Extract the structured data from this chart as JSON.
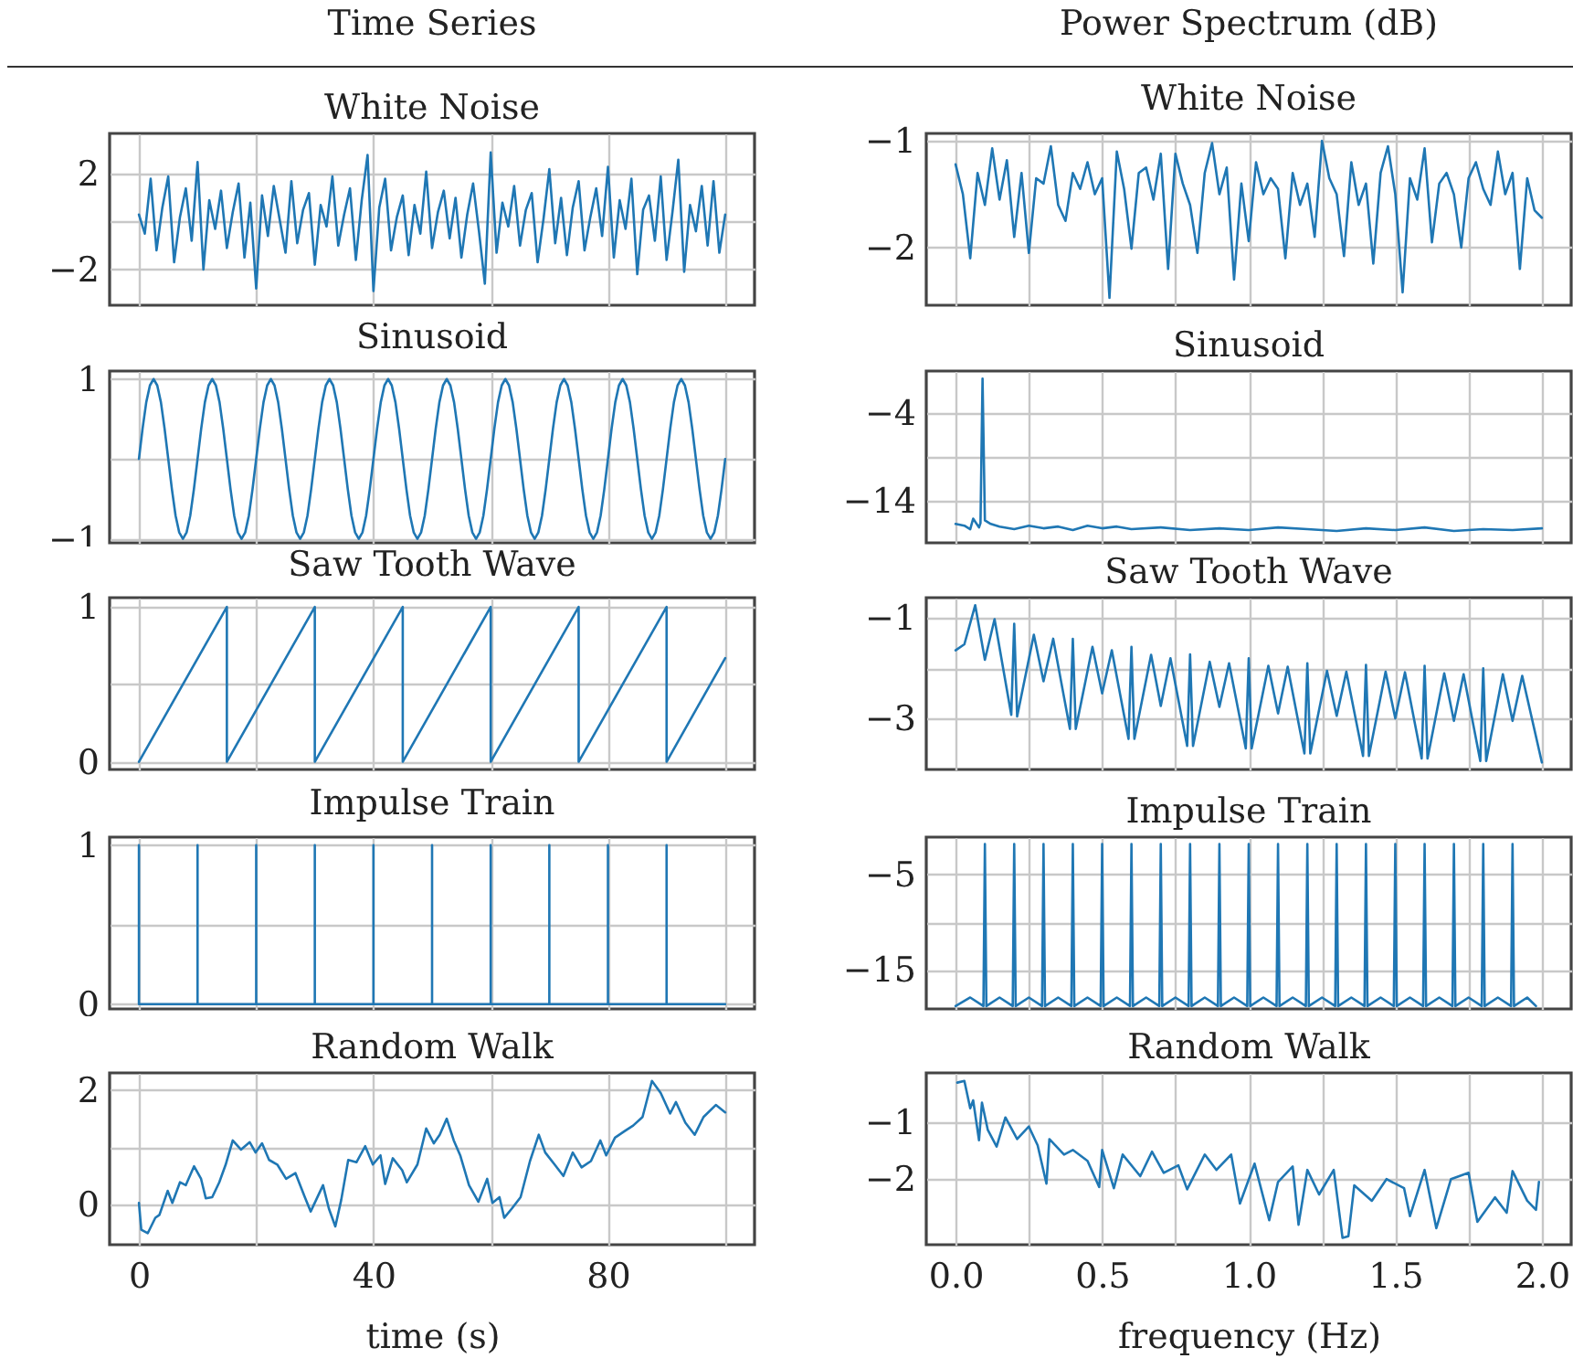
{
  "chart_data": [
    {
      "type": "line",
      "title": "White Noise",
      "annotations": [
        "Time Series"
      ],
      "color": "#1f77b4",
      "grid": true,
      "tick_labels": "y",
      "xlim": [
        -5,
        105
      ],
      "xticks": [
        0,
        20,
        40,
        60,
        80,
        100
      ],
      "ylim": [
        -3.5,
        3.7
      ],
      "yticks": [
        -2,
        {
          "value": 0,
          "label": null
        },
        2
      ],
      "x": [
        0,
        1,
        2,
        3,
        4,
        5,
        6,
        7,
        8,
        9,
        10,
        11,
        12,
        13,
        14,
        15,
        16,
        17,
        18,
        19,
        20,
        21,
        22,
        23,
        24,
        25,
        26,
        27,
        28,
        29,
        30,
        31,
        32,
        33,
        34,
        35,
        36,
        37,
        38,
        39,
        40,
        41,
        42,
        43,
        44,
        45,
        46,
        47,
        48,
        49,
        50,
        51,
        52,
        53,
        54,
        55,
        56,
        57,
        58,
        59,
        60,
        61,
        62,
        63,
        64,
        65,
        66,
        67,
        68,
        69,
        70,
        71,
        72,
        73,
        74,
        75,
        76,
        77,
        78,
        79,
        80,
        81,
        82,
        83,
        84,
        85,
        86,
        87,
        88,
        89,
        90,
        91,
        92,
        93,
        94,
        95,
        96,
        97,
        98,
        99,
        100
      ],
      "values": [
        0.3,
        -0.5,
        1.8,
        -1.2,
        0.6,
        1.9,
        -1.7,
        0.2,
        1.4,
        -0.8,
        2.5,
        -2.0,
        0.9,
        -0.3,
        1.3,
        -1.1,
        0.4,
        1.6,
        -1.5,
        0.8,
        -2.8,
        1.1,
        -0.6,
        1.5,
        0.1,
        -1.3,
        1.7,
        -0.9,
        0.5,
        1.2,
        -1.8,
        0.7,
        -0.2,
        1.9,
        -1.0,
        0.3,
        1.4,
        -1.6,
        0.9,
        2.8,
        -2.9,
        0.6,
        1.8,
        -1.2,
        0.2,
        1.1,
        -1.4,
        0.7,
        -0.5,
        2.1,
        -1.1,
        0.4,
        1.3,
        -0.7,
        1.0,
        -1.5,
        0.3,
        1.6,
        -0.4,
        -2.6,
        2.9,
        -1.3,
        0.8,
        -0.2,
        1.5,
        -1.0,
        0.5,
        1.2,
        -1.7,
        0.1,
        2.2,
        -0.9,
        1.0,
        -1.4,
        0.6,
        1.7,
        -1.2,
        0.2,
        1.4,
        -0.6,
        2.3,
        -1.5,
        0.9,
        -0.3,
        1.8,
        -2.2,
        0.5,
        1.1,
        -0.8,
        1.9,
        -1.6,
        0.4,
        2.6,
        -2.1,
        0.7,
        -0.4,
        1.5,
        -1.0,
        1.7,
        -1.3,
        0.3
      ]
    },
    {
      "type": "line",
      "title": "White Noise",
      "annotations": [
        "Power Spectrum (dB)"
      ],
      "color": "#1f77b4",
      "grid": true,
      "tick_labels": "y",
      "xlim": [
        -0.1,
        2.1
      ],
      "xticks": [
        0,
        0.25,
        0.5,
        0.75,
        1,
        1.25,
        1.5,
        1.75,
        2
      ],
      "ylim": [
        -2.54,
        -0.93
      ],
      "yticks": [
        -2,
        -1
      ],
      "x": [
        0,
        0.025,
        0.05,
        0.075,
        0.1,
        0.125,
        0.15,
        0.175,
        0.2,
        0.225,
        0.25,
        0.275,
        0.3,
        0.325,
        0.35,
        0.375,
        0.4,
        0.425,
        0.45,
        0.475,
        0.5,
        0.525,
        0.55,
        0.575,
        0.6,
        0.625,
        0.65,
        0.675,
        0.7,
        0.725,
        0.75,
        0.775,
        0.8,
        0.825,
        0.85,
        0.875,
        0.9,
        0.925,
        0.95,
        0.975,
        1,
        1.025,
        1.05,
        1.075,
        1.1,
        1.125,
        1.15,
        1.175,
        1.2,
        1.225,
        1.25,
        1.275,
        1.3,
        1.325,
        1.35,
        1.375,
        1.4,
        1.425,
        1.45,
        1.475,
        1.5,
        1.525,
        1.55,
        1.575,
        1.6,
        1.625,
        1.65,
        1.675,
        1.7,
        1.725,
        1.75,
        1.775,
        1.8,
        1.825,
        1.85,
        1.875,
        1.9,
        1.925,
        1.95,
        1.975,
        2
      ],
      "values": [
        -1.22,
        -1.5,
        -2.1,
        -1.3,
        -1.6,
        -1.07,
        -1.55,
        -1.18,
        -1.9,
        -1.3,
        -2.05,
        -1.35,
        -1.4,
        -1.05,
        -1.6,
        -1.75,
        -1.3,
        -1.45,
        -1.2,
        -1.5,
        -1.35,
        -2.47,
        -1.1,
        -1.45,
        -2.01,
        -1.3,
        -1.25,
        -1.55,
        -1.12,
        -2.2,
        -1.12,
        -1.4,
        -1.6,
        -2.05,
        -1.3,
        -1.02,
        -1.5,
        -1.25,
        -2.3,
        -1.4,
        -1.94,
        -1.2,
        -1.5,
        -1.35,
        -1.45,
        -2.1,
        -1.3,
        -1.6,
        -1.4,
        -1.9,
        -1.0,
        -1.35,
        -1.5,
        -2.08,
        -1.2,
        -1.6,
        -1.4,
        -2.15,
        -1.3,
        -1.05,
        -1.5,
        -2.42,
        -1.35,
        -1.55,
        -1.07,
        -1.95,
        -1.4,
        -1.3,
        -1.5,
        -2.0,
        -1.35,
        -1.2,
        -1.45,
        -1.6,
        -1.1,
        -1.5,
        -1.3,
        -2.2,
        -1.35,
        -1.65,
        -1.72
      ]
    },
    {
      "type": "line",
      "title": "Sinusoid",
      "color": "#1f77b4",
      "grid": true,
      "tick_labels": "y",
      "xlim": [
        -5,
        105
      ],
      "xticks": [
        0,
        20,
        40,
        60,
        80,
        100
      ],
      "ylim": [
        -1.05,
        1.1
      ],
      "yticks": [
        -1,
        {
          "value": 0,
          "label": null
        },
        1
      ],
      "x": [
        0,
        0.625,
        1.25,
        1.875,
        2.5,
        3.125,
        3.75,
        4.375,
        5,
        5.625,
        6.25,
        6.875,
        7.5,
        8.125,
        8.75,
        9.375,
        10,
        10.625,
        11.25,
        11.875,
        12.5,
        13.125,
        13.75,
        14.375,
        15,
        15.625,
        16.25,
        16.875,
        17.5,
        18.125,
        18.75,
        19.375,
        20,
        20.625,
        21.25,
        21.875,
        22.5,
        23.125,
        23.75,
        24.375,
        25,
        25.625,
        26.25,
        26.875,
        27.5,
        28.125,
        28.75,
        29.375,
        30,
        30.625,
        31.25,
        31.875,
        32.5,
        33.125,
        33.75,
        34.375,
        35,
        35.625,
        36.25,
        36.875,
        37.5,
        38.125,
        38.75,
        39.375,
        40,
        40.625,
        41.25,
        41.875,
        42.5,
        43.125,
        43.75,
        44.375,
        45,
        45.625,
        46.25,
        46.875,
        47.5,
        48.125,
        48.75,
        49.375,
        50,
        50.625,
        51.25,
        51.875,
        52.5,
        53.125,
        53.75,
        54.375,
        55,
        55.625,
        56.25,
        56.875,
        57.5,
        58.125,
        58.75,
        59.375,
        60,
        60.625,
        61.25,
        61.875,
        62.5,
        63.125,
        63.75,
        64.375,
        65,
        65.625,
        66.25,
        66.875,
        67.5,
        68.125,
        68.75,
        69.375,
        70,
        70.625,
        71.25,
        71.875,
        72.5,
        73.125,
        73.75,
        74.375,
        75,
        75.625,
        76.25,
        76.875,
        77.5,
        78.125,
        78.75,
        79.375,
        80,
        80.625,
        81.25,
        81.875,
        82.5,
        83.125,
        83.75,
        84.375,
        85,
        85.625,
        86.25,
        86.875,
        87.5,
        88.125,
        88.75,
        89.375,
        90,
        90.625,
        91.25,
        91.875,
        92.5,
        93.125,
        93.75,
        94.375,
        95,
        95.625,
        96.25,
        96.875,
        97.5,
        98.125,
        98.75,
        99.375,
        100
      ],
      "values": [
        0,
        0.38,
        0.71,
        0.92,
        1,
        0.92,
        0.71,
        0.38,
        0,
        -0.38,
        -0.71,
        -0.92,
        -1,
        -0.92,
        -0.71,
        -0.38,
        0,
        0.38,
        0.71,
        0.92,
        1,
        0.92,
        0.71,
        0.38,
        0,
        -0.38,
        -0.71,
        -0.92,
        -1,
        -0.92,
        -0.71,
        -0.38,
        0,
        0.38,
        0.71,
        0.92,
        1,
        0.92,
        0.71,
        0.38,
        0,
        -0.38,
        -0.71,
        -0.92,
        -1,
        -0.92,
        -0.71,
        -0.38,
        0,
        0.38,
        0.71,
        0.92,
        1,
        0.92,
        0.71,
        0.38,
        0,
        -0.38,
        -0.71,
        -0.92,
        -1,
        -0.92,
        -0.71,
        -0.38,
        0,
        0.38,
        0.71,
        0.92,
        1,
        0.92,
        0.71,
        0.38,
        0,
        -0.38,
        -0.71,
        -0.92,
        -1,
        -0.92,
        -0.71,
        -0.38,
        0,
        0.38,
        0.71,
        0.92,
        1,
        0.92,
        0.71,
        0.38,
        0,
        -0.38,
        -0.71,
        -0.92,
        -1,
        -0.92,
        -0.71,
        -0.38,
        0,
        0.38,
        0.71,
        0.92,
        1,
        0.92,
        0.71,
        0.38,
        0,
        -0.38,
        -0.71,
        -0.92,
        -1,
        -0.92,
        -0.71,
        -0.38,
        0,
        0.38,
        0.71,
        0.92,
        1,
        0.92,
        0.71,
        0.38,
        0,
        -0.38,
        -0.71,
        -0.92,
        -1,
        -0.92,
        -0.71,
        -0.38,
        0,
        0.38,
        0.71,
        0.92,
        1,
        0.92,
        0.71,
        0.38,
        0,
        -0.38,
        -0.71,
        -0.92,
        -1,
        -0.92,
        -0.71,
        -0.38,
        0,
        0.38,
        0.71,
        0.92,
        1,
        0.92,
        0.71,
        0.38,
        0,
        -0.38,
        -0.71,
        -0.92,
        -1,
        -0.92,
        -0.71,
        -0.38,
        0
      ]
    },
    {
      "type": "line",
      "title": "Sinusoid",
      "color": "#1f77b4",
      "grid": true,
      "tick_labels": "y",
      "xlim": [
        -0.1,
        2.1
      ],
      "xticks": [
        0,
        0.25,
        0.5,
        0.75,
        1,
        1.25,
        1.5,
        1.75,
        2
      ],
      "ylim": [
        -18.75,
        0.75
      ],
      "yticks": [
        -14,
        {
          "value": -9,
          "label": null
        },
        -4
      ],
      "x": [
        0,
        0.03,
        0.05,
        0.06,
        0.08,
        0.085,
        0.092,
        0.1,
        0.12,
        0.15,
        0.2,
        0.25,
        0.3,
        0.35,
        0.4,
        0.45,
        0.5,
        0.55,
        0.6,
        0.7,
        0.8,
        0.9,
        1,
        1.1,
        1.2,
        1.3,
        1.4,
        1.5,
        1.6,
        1.7,
        1.8,
        1.9,
        2
      ],
      "values": [
        -16.6,
        -16.8,
        -17.2,
        -16.0,
        -17.0,
        -16.5,
        -0.1,
        -16.2,
        -16.6,
        -16.9,
        -17.2,
        -16.8,
        -17.1,
        -16.9,
        -17.3,
        -16.8,
        -17.1,
        -16.9,
        -17.2,
        -17.0,
        -17.3,
        -17.1,
        -17.3,
        -17.0,
        -17.2,
        -17.4,
        -17.1,
        -17.3,
        -17.0,
        -17.4,
        -17.2,
        -17.3,
        -17.1
      ]
    },
    {
      "type": "line",
      "title": "Saw Tooth Wave",
      "color": "#1f77b4",
      "grid": true,
      "tick_labels": "y",
      "xlim": [
        -5,
        105
      ],
      "xticks": [
        0,
        20,
        40,
        60,
        80,
        100
      ],
      "ylim": [
        -0.05,
        1.06
      ],
      "yticks": [
        0,
        {
          "value": 0.5,
          "label": null
        },
        1
      ],
      "x": [
        0,
        15,
        15,
        30,
        30,
        45,
        45,
        60,
        60,
        75,
        75,
        90,
        90,
        100
      ],
      "values": [
        0,
        1,
        0,
        1,
        0,
        1,
        0,
        1,
        0,
        1,
        0,
        1,
        0,
        0.67
      ]
    },
    {
      "type": "line",
      "title": "Saw Tooth Wave",
      "color": "#1f77b4",
      "grid": true,
      "tick_labels": "y",
      "xlim": [
        -0.1,
        2.1
      ],
      "xticks": [
        0,
        0.25,
        0.5,
        0.75,
        1,
        1.25,
        1.5,
        1.75,
        2
      ],
      "ylim": [
        -4.02,
        -0.59
      ],
      "yticks": [
        -3,
        {
          "value": -2,
          "label": null
        },
        -1
      ],
      "x": [
        0,
        0.03,
        0.067,
        0.1,
        0.133,
        0.19,
        0.2,
        0.21,
        0.267,
        0.3,
        0.333,
        0.39,
        0.4,
        0.41,
        0.467,
        0.5,
        0.533,
        0.59,
        0.6,
        0.61,
        0.667,
        0.7,
        0.733,
        0.79,
        0.8,
        0.81,
        0.867,
        0.9,
        0.933,
        0.99,
        1,
        1.01,
        1.067,
        1.1,
        1.133,
        1.19,
        1.2,
        1.21,
        1.267,
        1.3,
        1.333,
        1.39,
        1.4,
        1.41,
        1.467,
        1.5,
        1.533,
        1.59,
        1.6,
        1.61,
        1.667,
        1.7,
        1.733,
        1.79,
        1.8,
        1.81,
        1.867,
        1.9,
        1.933,
        2
      ],
      "values": [
        -1.64,
        -1.52,
        -0.74,
        -1.83,
        -1.02,
        -2.93,
        -1.11,
        -2.96,
        -1.33,
        -2.26,
        -1.41,
        -3.21,
        -1.41,
        -3.21,
        -1.57,
        -2.5,
        -1.64,
        -3.41,
        -1.57,
        -3.41,
        -1.73,
        -2.75,
        -1.8,
        -3.55,
        -1.72,
        -3.55,
        -1.87,
        -2.77,
        -1.9,
        -3.6,
        -1.8,
        -3.6,
        -1.95,
        -2.9,
        -1.97,
        -3.7,
        -1.9,
        -3.7,
        -2.05,
        -2.95,
        -2.07,
        -3.75,
        -1.93,
        -3.75,
        -2.07,
        -3.0,
        -2.08,
        -3.8,
        -1.95,
        -3.8,
        -2.1,
        -3.05,
        -2.12,
        -3.85,
        -2.0,
        -3.85,
        -2.12,
        -3.05,
        -2.15,
        -3.88
      ]
    },
    {
      "type": "line",
      "title": "Impulse Train",
      "color": "#1f77b4",
      "grid": true,
      "tick_labels": "y",
      "xlim": [
        -5,
        105
      ],
      "xticks": [
        0,
        20,
        40,
        60,
        80,
        100
      ],
      "ylim": [
        -0.03,
        1.05
      ],
      "yticks": [
        0,
        {
          "value": 0.5,
          "label": null
        },
        1
      ],
      "x": [
        0,
        0,
        10,
        10,
        10,
        20,
        20,
        20,
        30,
        30,
        30,
        40,
        40,
        40,
        50,
        50,
        50,
        60,
        60,
        60,
        70,
        70,
        70,
        80,
        80,
        80,
        90,
        90,
        90,
        100
      ],
      "values": [
        1,
        0,
        0,
        1,
        0,
        0,
        1,
        0,
        0,
        1,
        0,
        0,
        1,
        0,
        0,
        1,
        0,
        0,
        1,
        0,
        0,
        1,
        0,
        0,
        1,
        0,
        0,
        1,
        0,
        0
      ]
    },
    {
      "type": "line",
      "title": "Impulse Train",
      "color": "#1f77b4",
      "grid": true,
      "tick_labels": "y",
      "xlim": [
        -0.1,
        2.1
      ],
      "xticks": [
        0,
        0.25,
        0.5,
        0.75,
        1,
        1.25,
        1.5,
        1.75,
        2
      ],
      "ylim": [
        -19.1,
        -1.07
      ],
      "yticks": [
        -15,
        {
          "value": -10,
          "label": null
        },
        -5
      ],
      "x": [
        0,
        0.05,
        0.095,
        0.1,
        0.105,
        0.15,
        0.195,
        0.2,
        0.205,
        0.25,
        0.295,
        0.3,
        0.305,
        0.35,
        0.395,
        0.4,
        0.405,
        0.45,
        0.495,
        0.5,
        0.505,
        0.55,
        0.595,
        0.6,
        0.605,
        0.65,
        0.695,
        0.7,
        0.705,
        0.75,
        0.795,
        0.8,
        0.805,
        0.85,
        0.895,
        0.9,
        0.905,
        0.95,
        0.995,
        1,
        1.005,
        1.05,
        1.095,
        1.1,
        1.105,
        1.15,
        1.195,
        1.2,
        1.205,
        1.25,
        1.295,
        1.3,
        1.305,
        1.35,
        1.395,
        1.4,
        1.405,
        1.45,
        1.495,
        1.5,
        1.505,
        1.55,
        1.595,
        1.6,
        1.605,
        1.65,
        1.695,
        1.7,
        1.705,
        1.75,
        1.795,
        1.8,
        1.805,
        1.85,
        1.895,
        1.9,
        1.905,
        1.95,
        1.98
      ],
      "values": [
        -18.8,
        -17.9,
        -18.8,
        -1.8,
        -18.8,
        -17.9,
        -18.8,
        -1.8,
        -18.8,
        -17.9,
        -18.8,
        -1.8,
        -18.8,
        -17.9,
        -18.8,
        -1.8,
        -18.8,
        -17.9,
        -18.8,
        -1.8,
        -18.8,
        -17.9,
        -18.8,
        -1.8,
        -18.8,
        -17.9,
        -18.8,
        -1.8,
        -18.8,
        -17.9,
        -18.8,
        -1.8,
        -18.8,
        -17.9,
        -18.8,
        -1.8,
        -18.8,
        -17.9,
        -18.8,
        -1.8,
        -18.8,
        -17.9,
        -18.8,
        -1.8,
        -18.8,
        -17.9,
        -18.8,
        -1.8,
        -18.8,
        -17.9,
        -18.8,
        -1.8,
        -18.8,
        -17.9,
        -18.8,
        -1.8,
        -18.8,
        -17.9,
        -18.8,
        -1.8,
        -18.8,
        -17.9,
        -18.8,
        -1.8,
        -18.8,
        -17.9,
        -18.8,
        -1.8,
        -18.8,
        -17.9,
        -18.8,
        -1.8,
        -18.8,
        -17.9,
        -18.8,
        -1.8,
        -18.8,
        -17.9,
        -18.8
      ]
    },
    {
      "type": "line",
      "title": "Random Walk",
      "xlabel": "time (s)",
      "color": "#1f77b4",
      "grid": true,
      "xlim": [
        -5,
        105
      ],
      "xticks": [
        0,
        {
          "value": 20,
          "label": null
        },
        40,
        {
          "value": 60,
          "label": null
        },
        80,
        {
          "value": 100,
          "label": null
        }
      ],
      "ylim": [
        -0.7,
        2.3
      ],
      "yticks": [
        0,
        {
          "value": 1,
          "label": null
        },
        2
      ],
      "x": [
        0,
        0.4,
        1.5,
        2.8,
        3.5,
        4.9,
        5.7,
        7,
        8,
        9.4,
        10.6,
        11.4,
        12.5,
        13.7,
        14.8,
        16,
        17.4,
        18.9,
        19.9,
        21,
        22.2,
        23.6,
        25.1,
        26.7,
        28.3,
        29.3,
        31.4,
        32.4,
        33.5,
        34.5,
        35.7,
        37.1,
        38.6,
        39.9,
        41.2,
        42,
        43.3,
        44.9,
        45.7,
        47.5,
        49,
        50.3,
        51.3,
        52.5,
        53.7,
        54.8,
        56.3,
        57.9,
        59.4,
        60.3,
        61.5,
        62.3,
        63.6,
        65.1,
        66.7,
        68.2,
        69.3,
        70.9,
        72.4,
        74,
        75.5,
        77.1,
        78.7,
        79.7,
        81.2,
        82.8,
        84.3,
        85.9,
        87.5,
        89,
        90.6,
        91.6,
        93.2,
        94.8,
        96.3,
        98.4,
        100
      ],
      "values": [
        0.03,
        -0.44,
        -0.5,
        -0.23,
        -0.18,
        0.24,
        0.03,
        0.39,
        0.34,
        0.67,
        0.45,
        0.11,
        0.13,
        0.39,
        0.7,
        1.12,
        0.96,
        1.09,
        0.91,
        1.07,
        0.78,
        0.7,
        0.45,
        0.55,
        0.13,
        -0.12,
        0.34,
        -0.07,
        -0.38,
        0.08,
        0.78,
        0.74,
        1.02,
        0.7,
        0.86,
        0.36,
        0.81,
        0.6,
        0.39,
        0.7,
        1.33,
        1.07,
        1.22,
        1.5,
        1.12,
        0.86,
        0.34,
        0.05,
        0.45,
        0.03,
        0.13,
        -0.23,
        -0.07,
        0.13,
        0.76,
        1.22,
        0.91,
        0.7,
        0.5,
        0.91,
        0.65,
        0.76,
        1.12,
        0.86,
        1.17,
        1.28,
        1.38,
        1.53,
        2.16,
        1.95,
        1.59,
        1.79,
        1.43,
        1.22,
        1.53,
        1.74,
        1.61
      ]
    },
    {
      "type": "line",
      "title": "Random Walk",
      "xlabel": "frequency (Hz)",
      "color": "#1f77b4",
      "grid": true,
      "xlim": [
        -0.1,
        2.1
      ],
      "xticks": [
        {
          "value": 0,
          "label": "0.0"
        },
        {
          "value": 0.25,
          "label": null
        },
        0.5,
        {
          "value": 0.75,
          "label": null
        },
        {
          "value": 1,
          "label": "1.0"
        },
        {
          "value": 1.25,
          "label": null
        },
        1.5,
        {
          "value": 1.75,
          "label": null
        },
        {
          "value": 2,
          "label": "2.0"
        }
      ],
      "ylim": [
        -3.15,
        -0.14
      ],
      "yticks": [
        -2,
        -1
      ],
      "x": [
        0.006,
        0.03,
        0.05,
        0.06,
        0.08,
        0.09,
        0.11,
        0.14,
        0.17,
        0.21,
        0.25,
        0.28,
        0.31,
        0.32,
        0.37,
        0.4,
        0.45,
        0.49,
        0.5,
        0.54,
        0.57,
        0.63,
        0.67,
        0.71,
        0.76,
        0.79,
        0.85,
        0.89,
        0.94,
        0.97,
        1.02,
        1.07,
        1.1,
        1.15,
        1.17,
        1.2,
        1.24,
        1.29,
        1.32,
        1.34,
        1.36,
        1.42,
        1.47,
        1.53,
        1.55,
        1.6,
        1.64,
        1.69,
        1.75,
        1.78,
        1.84,
        1.88,
        1.9,
        1.95,
        1.98,
        1.99
      ],
      "values": [
        -0.31,
        -0.28,
        -0.76,
        -0.62,
        -1.32,
        -0.66,
        -1.14,
        -1.43,
        -0.92,
        -1.3,
        -1.08,
        -1.41,
        -2.08,
        -1.3,
        -1.57,
        -1.49,
        -1.68,
        -2.14,
        -1.49,
        -2.16,
        -1.57,
        -1.95,
        -1.52,
        -1.89,
        -1.76,
        -2.18,
        -1.57,
        -1.84,
        -1.57,
        -2.43,
        -1.73,
        -2.72,
        -2.05,
        -1.78,
        -2.8,
        -1.84,
        -2.27,
        -1.84,
        -3.03,
        -3.0,
        -2.11,
        -2.38,
        -2.0,
        -2.16,
        -2.65,
        -1.84,
        -2.86,
        -2.0,
        -1.89,
        -2.75,
        -2.32,
        -2.59,
        -1.86,
        -2.38,
        -2.54,
        -2.05
      ]
    }
  ]
}
